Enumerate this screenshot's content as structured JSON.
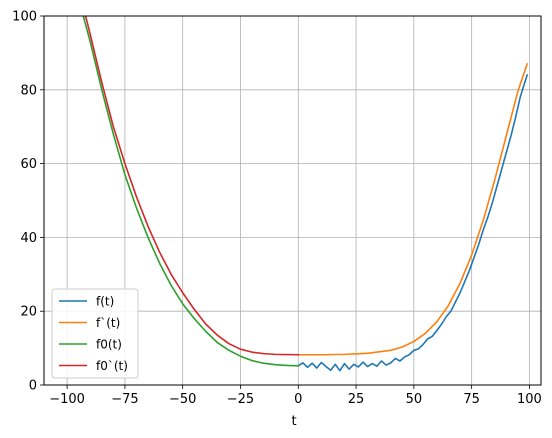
{
  "chart_data": {
    "type": "line",
    "xlabel": "t",
    "ylabel": "",
    "xlim": [
      -110,
      105
    ],
    "ylim": [
      0,
      100
    ],
    "xticks": [
      -100,
      -75,
      -50,
      -25,
      0,
      25,
      50,
      75,
      100
    ],
    "xtick_labels": [
      "−100",
      "−75",
      "−50",
      "−25",
      "0",
      "25",
      "50",
      "75",
      "100"
    ],
    "yticks": [
      0,
      20,
      40,
      60,
      80,
      100
    ],
    "ytick_labels": [
      "0",
      "20",
      "40",
      "60",
      "80",
      "100"
    ],
    "grid": true,
    "legend_position": "lower-left",
    "series": [
      {
        "name": "f(t)",
        "color": "#1f77b4",
        "x": [
          0,
          2,
          4,
          6,
          8,
          10,
          12,
          14,
          16,
          18,
          20,
          22,
          24,
          26,
          28,
          30,
          32,
          34,
          36,
          38,
          40,
          42,
          44,
          46,
          48,
          50,
          52,
          54,
          56,
          58,
          60,
          62,
          64,
          66,
          68,
          70,
          72,
          74,
          76,
          78,
          80,
          82,
          84,
          86,
          88,
          90,
          92,
          94,
          96,
          98,
          99
        ],
        "y": [
          5.2,
          6.0,
          4.8,
          5.9,
          4.6,
          6.1,
          5.0,
          4.0,
          5.6,
          3.9,
          5.8,
          4.3,
          5.6,
          4.9,
          6.2,
          5.0,
          5.8,
          5.1,
          6.5,
          5.4,
          6.0,
          7.2,
          6.5,
          7.6,
          8.2,
          9.4,
          9.8,
          11.0,
          12.5,
          13.2,
          14.8,
          16.5,
          18.5,
          20.0,
          22.5,
          25.0,
          28.0,
          31.0,
          34.5,
          38.0,
          42.0,
          45.5,
          49.5,
          54.0,
          58.5,
          63.0,
          67.5,
          72.5,
          78.0,
          82.0,
          84.0
        ]
      },
      {
        "name": "f`(t)",
        "color": "#ff7f0e",
        "x": [
          0,
          10,
          20,
          30,
          40,
          45,
          50,
          55,
          60,
          65,
          70,
          75,
          80,
          85,
          90,
          95,
          99
        ],
        "y": [
          8.2,
          8.2,
          8.3,
          8.6,
          9.4,
          10.3,
          11.8,
          14.0,
          17.2,
          21.6,
          27.6,
          35.2,
          44.6,
          55.6,
          67.6,
          79.6,
          87.0
        ]
      },
      {
        "name": "f0(t)",
        "color": "#2ca02c",
        "x": [
          -93,
          -90,
          -85,
          -80,
          -75,
          -70,
          -65,
          -60,
          -55,
          -50,
          -45,
          -40,
          -35,
          -30,
          -25,
          -20,
          -15,
          -10,
          -5,
          0
        ],
        "y": [
          100,
          93,
          80,
          68,
          57,
          48,
          40,
          33,
          27,
          22,
          18,
          14.5,
          11.5,
          9.4,
          7.8,
          6.6,
          5.9,
          5.5,
          5.3,
          5.2
        ]
      },
      {
        "name": "f0`(t)",
        "color": "#d62728",
        "x": [
          -92,
          -90,
          -85,
          -80,
          -75,
          -70,
          -65,
          -60,
          -55,
          -50,
          -45,
          -40,
          -35,
          -30,
          -25,
          -20,
          -15,
          -10,
          -5,
          0
        ],
        "y": [
          100,
          95,
          82,
          70,
          60,
          51,
          43,
          36,
          30,
          25,
          20.5,
          16.5,
          13.5,
          11.2,
          9.7,
          8.9,
          8.5,
          8.3,
          8.25,
          8.2
        ]
      }
    ]
  }
}
